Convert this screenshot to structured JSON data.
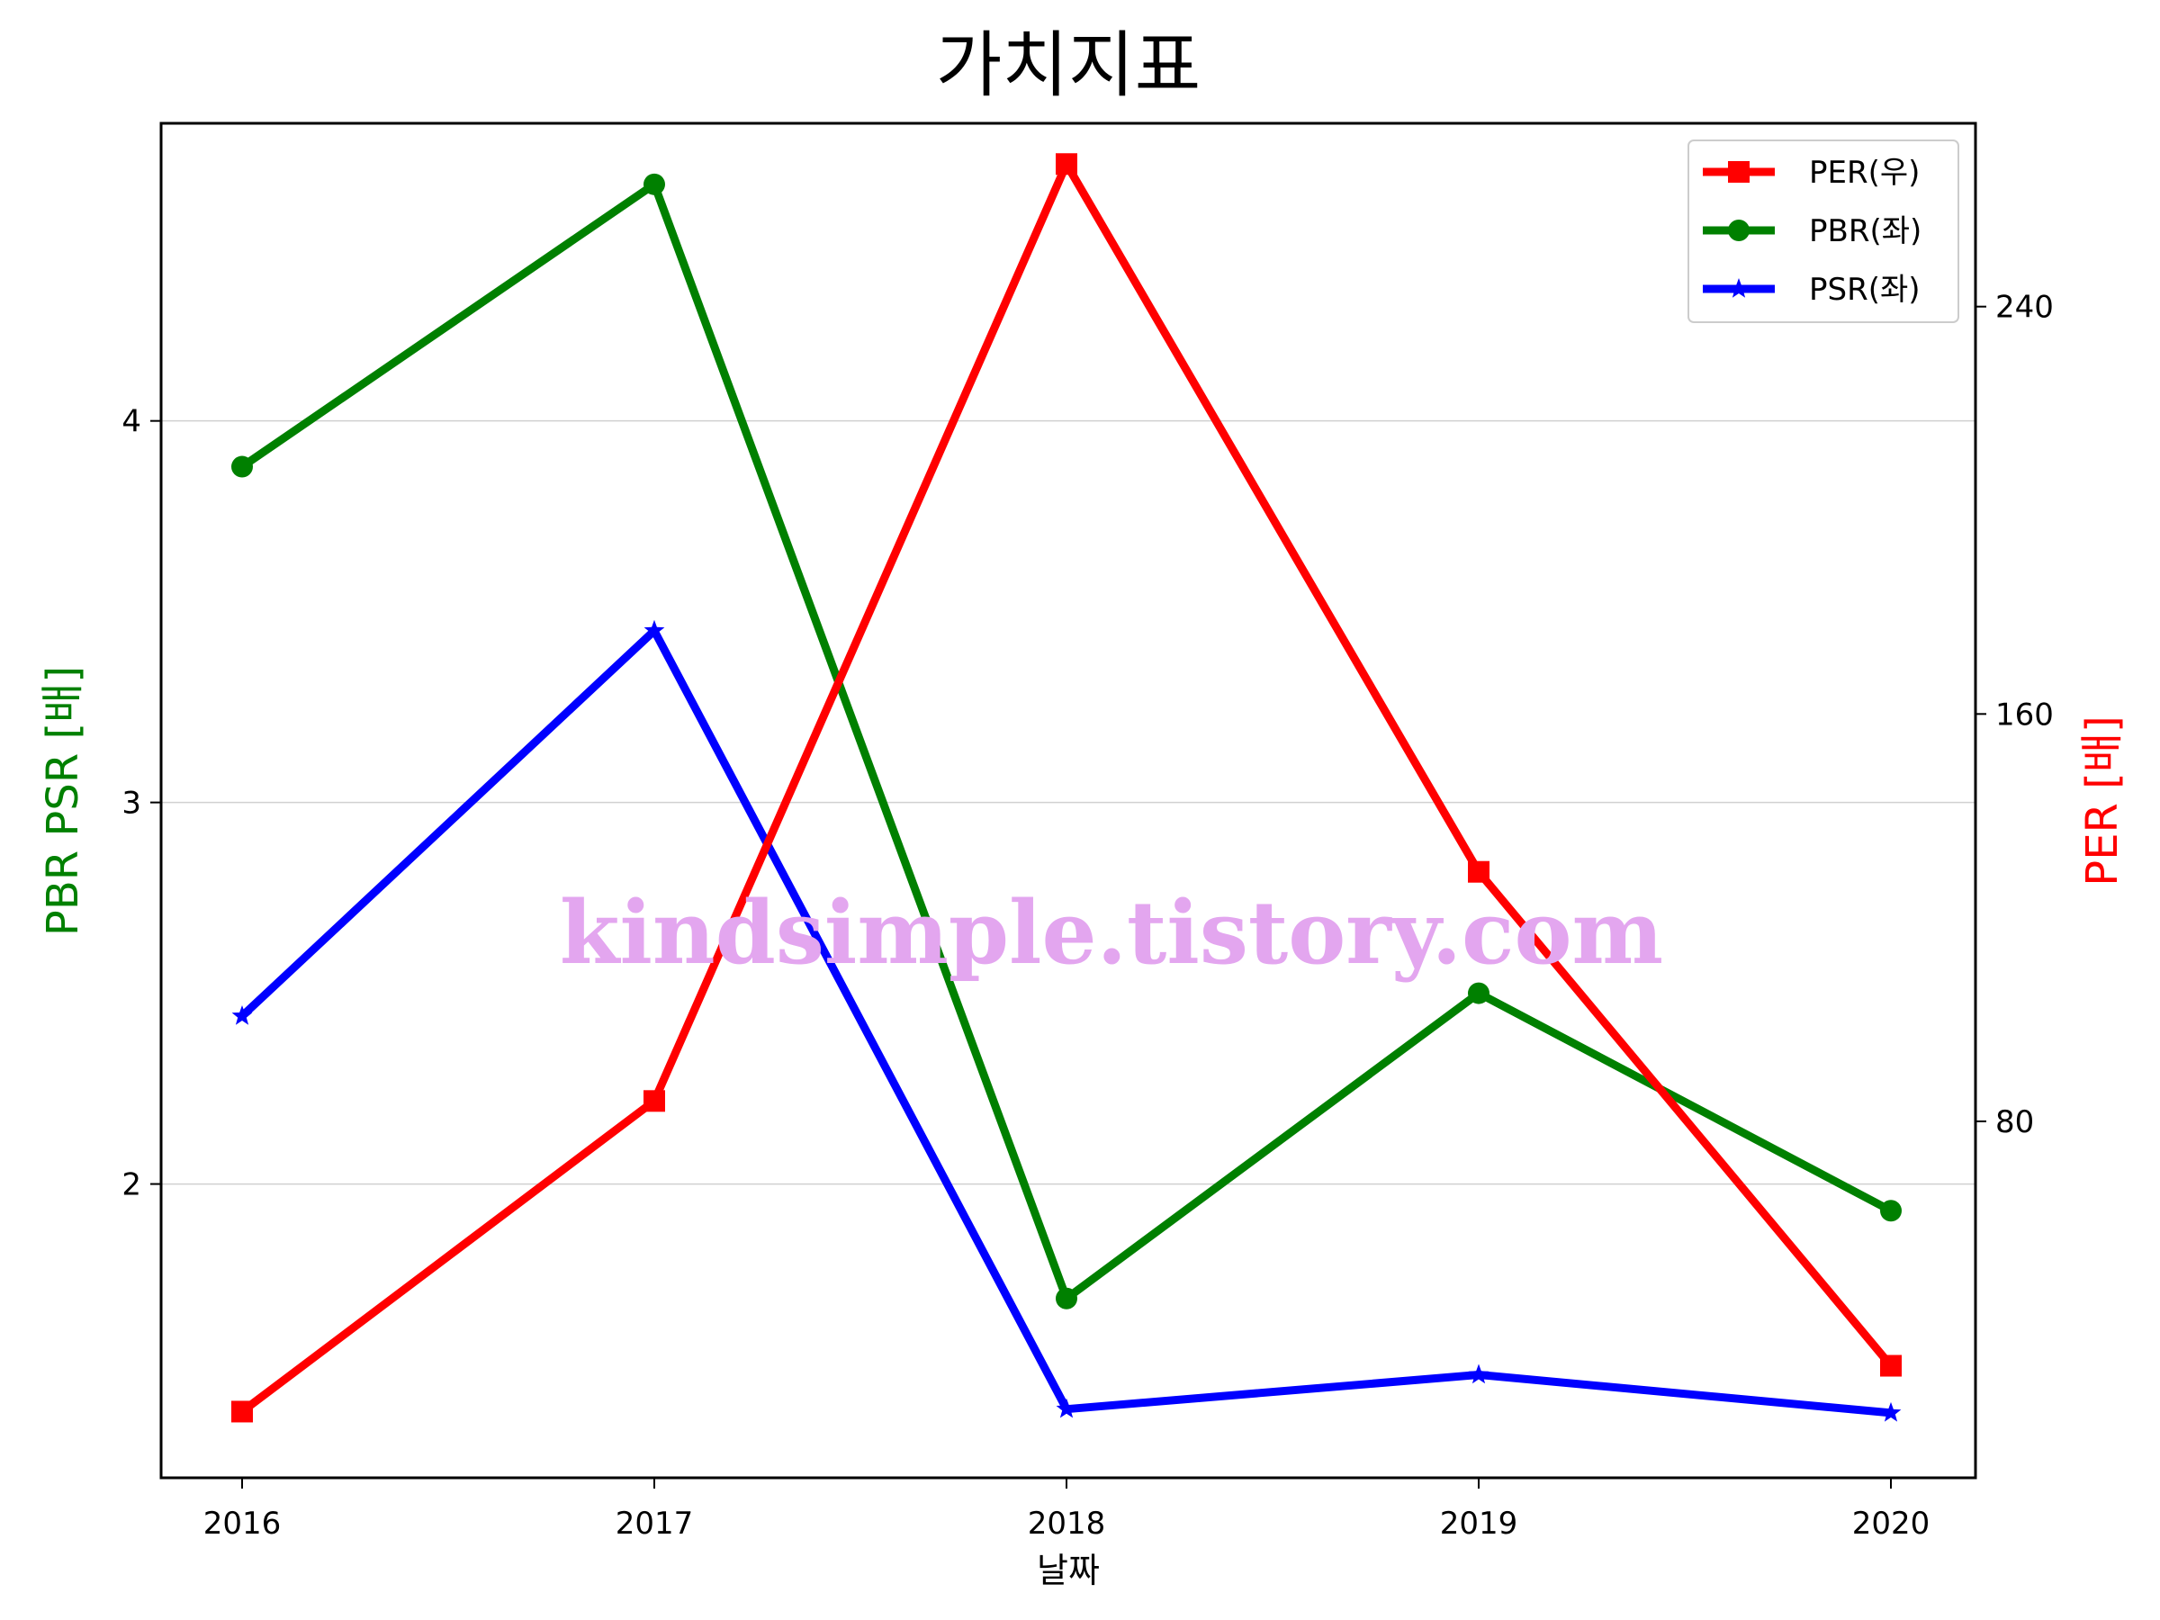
{
  "chart_data": {
    "type": "line",
    "title": "가치지표",
    "xlabel": "날짜",
    "ylabel_left": "PBR PSR [배]",
    "ylabel_right": "PER [배]",
    "categories": [
      "2016",
      "2017",
      "2018",
      "2019",
      "2020"
    ],
    "left_axis": {
      "ylim": [
        1.23,
        4.78
      ],
      "ticks": [
        2,
        3,
        4
      ],
      "tick_labels": [
        "2",
        "3",
        "4"
      ]
    },
    "right_axis": {
      "ylim": [
        10,
        276
      ],
      "ticks": [
        80,
        160,
        240
      ],
      "tick_labels": [
        "80",
        "160",
        "240"
      ]
    },
    "grid": "horizontal",
    "legend_position": "top-right",
    "series": [
      {
        "name": "PER(우)",
        "axis": "right",
        "color": "#ff0000",
        "marker": "square",
        "values": [
          23,
          84,
          268,
          129,
          32
        ]
      },
      {
        "name": "PBR(좌)",
        "axis": "left",
        "color": "#008000",
        "marker": "circle",
        "values": [
          3.88,
          4.62,
          1.7,
          2.5,
          1.93
        ]
      },
      {
        "name": "PSR(좌)",
        "axis": "left",
        "color": "#0000ff",
        "marker": "star",
        "values": [
          2.44,
          3.45,
          1.41,
          1.5,
          1.4
        ]
      }
    ],
    "watermark": "kindsimple.tistory.com"
  }
}
